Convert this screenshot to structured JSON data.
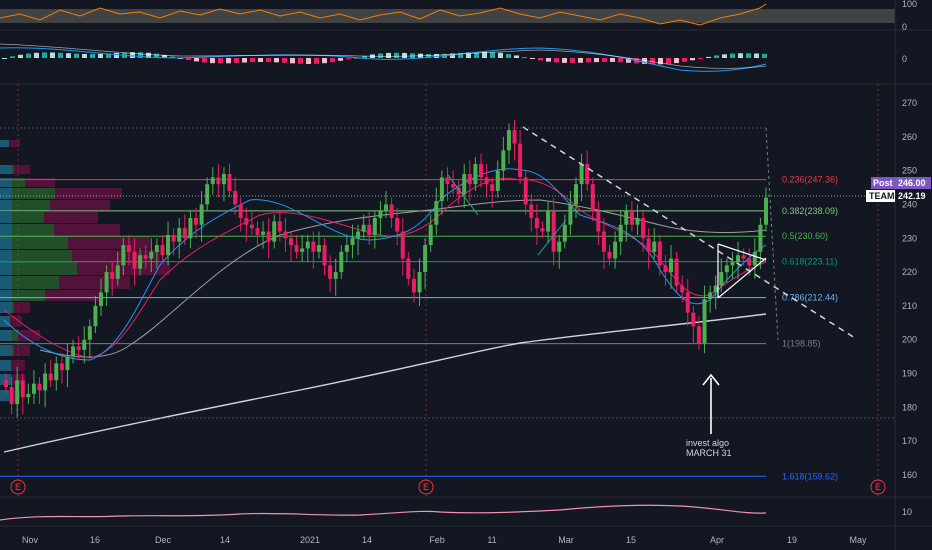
{
  "chart_data": {
    "type": "candlestick",
    "symbol": "TEAM",
    "price_axis": {
      "ticks": [
        160,
        170,
        180,
        190,
        200,
        210,
        220,
        230,
        240,
        250,
        260,
        270
      ]
    },
    "time_axis": {
      "labels": [
        "Nov",
        "16",
        "Dec",
        "14",
        "2021",
        "14",
        "Feb",
        "11",
        "Mar",
        "15",
        "Apr",
        "19",
        "May"
      ]
    },
    "last_price": {
      "label": "TEAM",
      "value": "242.19",
      "color": "#ffffff"
    },
    "post_price": {
      "label": "Post",
      "value": "246.00",
      "color": "#7e57c2"
    },
    "fib_levels": [
      {
        "label": "0.236(247.36)",
        "price": 247.36,
        "color": "#f23645"
      },
      {
        "label": "0.382(238.09)",
        "price": 238.09,
        "color": "#81c784"
      },
      {
        "label": "0.5(230.60)",
        "price": 230.6,
        "color": "#4caf50"
      },
      {
        "label": "0.618(223.11)",
        "price": 223.11,
        "color": "#089981"
      },
      {
        "label": "0.786(212.44)",
        "price": 212.44,
        "color": "#64b5f6"
      },
      {
        "label": "1(198.85)",
        "price": 198.85,
        "color": "#787b86"
      },
      {
        "label": "1.618(159.62)",
        "price": 159.62,
        "color": "#2962ff"
      }
    ],
    "annotation": {
      "line1": "invest algo",
      "line2": "MARCH 31"
    },
    "earnings_markers": [
      "E",
      "E",
      "E"
    ],
    "rsi_panel": {
      "ticks": [
        "100",
        "0"
      ],
      "color": "#f57c00"
    },
    "macd_panel": {
      "ticks": [
        "0"
      ]
    },
    "bottom_panel": {
      "ticks": [
        "10"
      ],
      "color": "#f48fb1"
    },
    "colors": {
      "up": "#26a69a",
      "up_body": "#4caf50",
      "down": "#ef5350",
      "down_body": "#e91e63"
    },
    "candles_close": [
      186,
      181,
      188,
      183,
      184,
      187,
      185,
      190,
      188,
      193,
      191,
      195,
      198,
      197,
      200,
      204,
      210,
      214,
      220,
      218,
      222,
      228,
      226,
      221,
      225,
      224,
      226,
      228,
      225,
      231,
      229,
      233,
      230,
      236,
      234,
      240,
      246,
      248,
      246,
      249,
      244,
      240,
      236,
      234,
      233,
      231,
      232,
      229,
      235,
      232,
      230,
      228,
      226,
      227,
      229,
      226,
      228,
      222,
      218,
      220,
      226,
      228,
      230,
      232,
      234,
      231,
      236,
      238,
      240,
      236,
      232,
      224,
      218,
      214,
      220,
      228,
      234,
      241,
      248,
      246,
      245,
      243,
      249,
      246,
      252,
      248,
      246,
      244,
      250,
      256,
      262,
      258,
      248,
      240,
      236,
      233,
      232,
      238,
      226,
      229,
      234,
      240,
      246,
      252,
      246,
      238,
      232,
      226,
      224,
      229,
      234,
      238,
      234,
      236,
      230,
      226,
      229,
      222,
      220,
      224,
      216,
      214,
      208,
      204,
      199,
      212,
      214,
      216,
      220,
      222,
      223,
      225,
      224,
      222,
      226,
      234,
      242
    ]
  }
}
